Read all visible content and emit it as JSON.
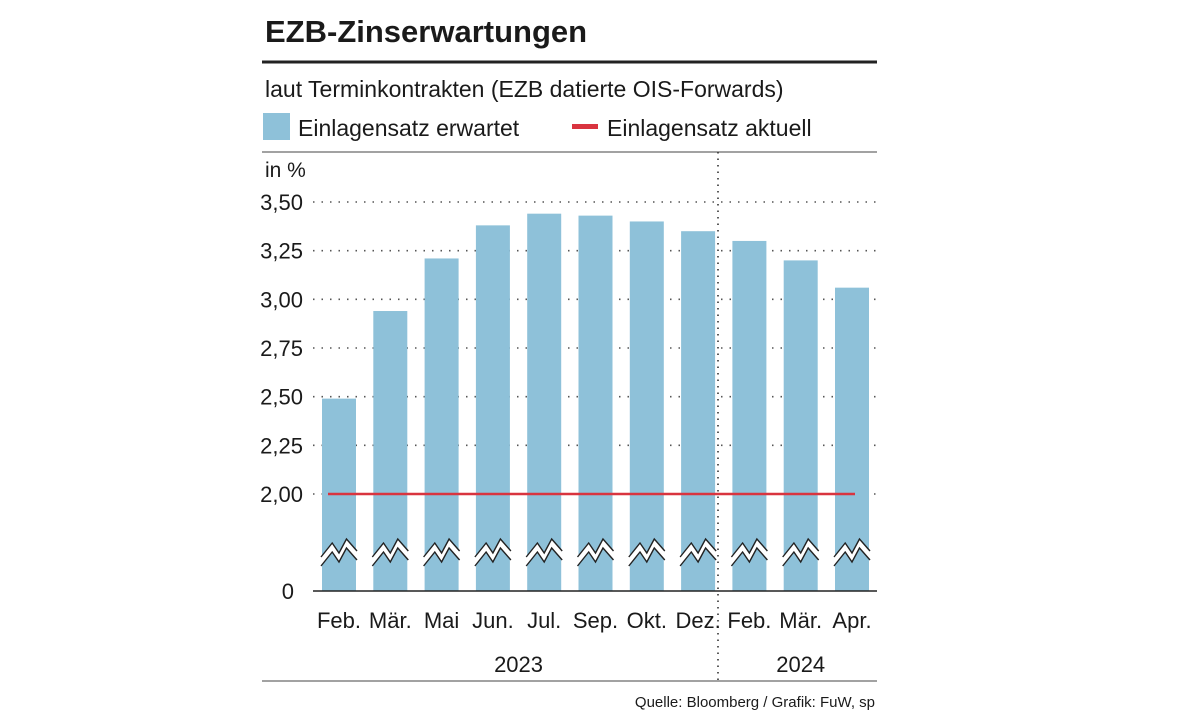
{
  "colors": {
    "bar": "#8ec1d9",
    "current_line": "#d9343f",
    "text": "#1a1a1a",
    "grid": "#555555",
    "rule": "#222222"
  },
  "chart_data": {
    "type": "bar",
    "title": "EZB-Zinserwartungen",
    "subtitle": "laut Terminkontrakten (EZB datierte OIS-Forwards)",
    "legend": {
      "expected": "Einlagensatz erwartet",
      "current": "Einlagensatz aktuell"
    },
    "unit_label": "in %",
    "categories": [
      "Feb.",
      "Mär.",
      "Mai",
      "Jun.",
      "Jul.",
      "Sep.",
      "Okt.",
      "Dez.",
      "Feb.",
      "Mär.",
      "Apr."
    ],
    "series": [
      {
        "name": "Einlagensatz erwartet",
        "values": [
          2.49,
          2.94,
          3.21,
          3.38,
          3.44,
          3.43,
          3.4,
          3.35,
          3.3,
          3.2,
          3.06
        ]
      }
    ],
    "current_rate": 2.0,
    "yticks": [
      "3,50",
      "3,25",
      "3,00",
      "2,75",
      "2,50",
      "2,25",
      "2,00"
    ],
    "ytick_values": [
      3.5,
      3.25,
      3.0,
      2.75,
      2.5,
      2.25,
      2.0
    ],
    "zero_label": "0",
    "ylim": [
      2.0,
      3.5
    ],
    "axis_break": true,
    "year_groups": [
      {
        "label": "2023",
        "start": 0,
        "end": 7
      },
      {
        "label": "2024",
        "start": 8,
        "end": 10
      }
    ],
    "source": "Quelle: Bloomberg / Grafik: FuW, sp"
  }
}
